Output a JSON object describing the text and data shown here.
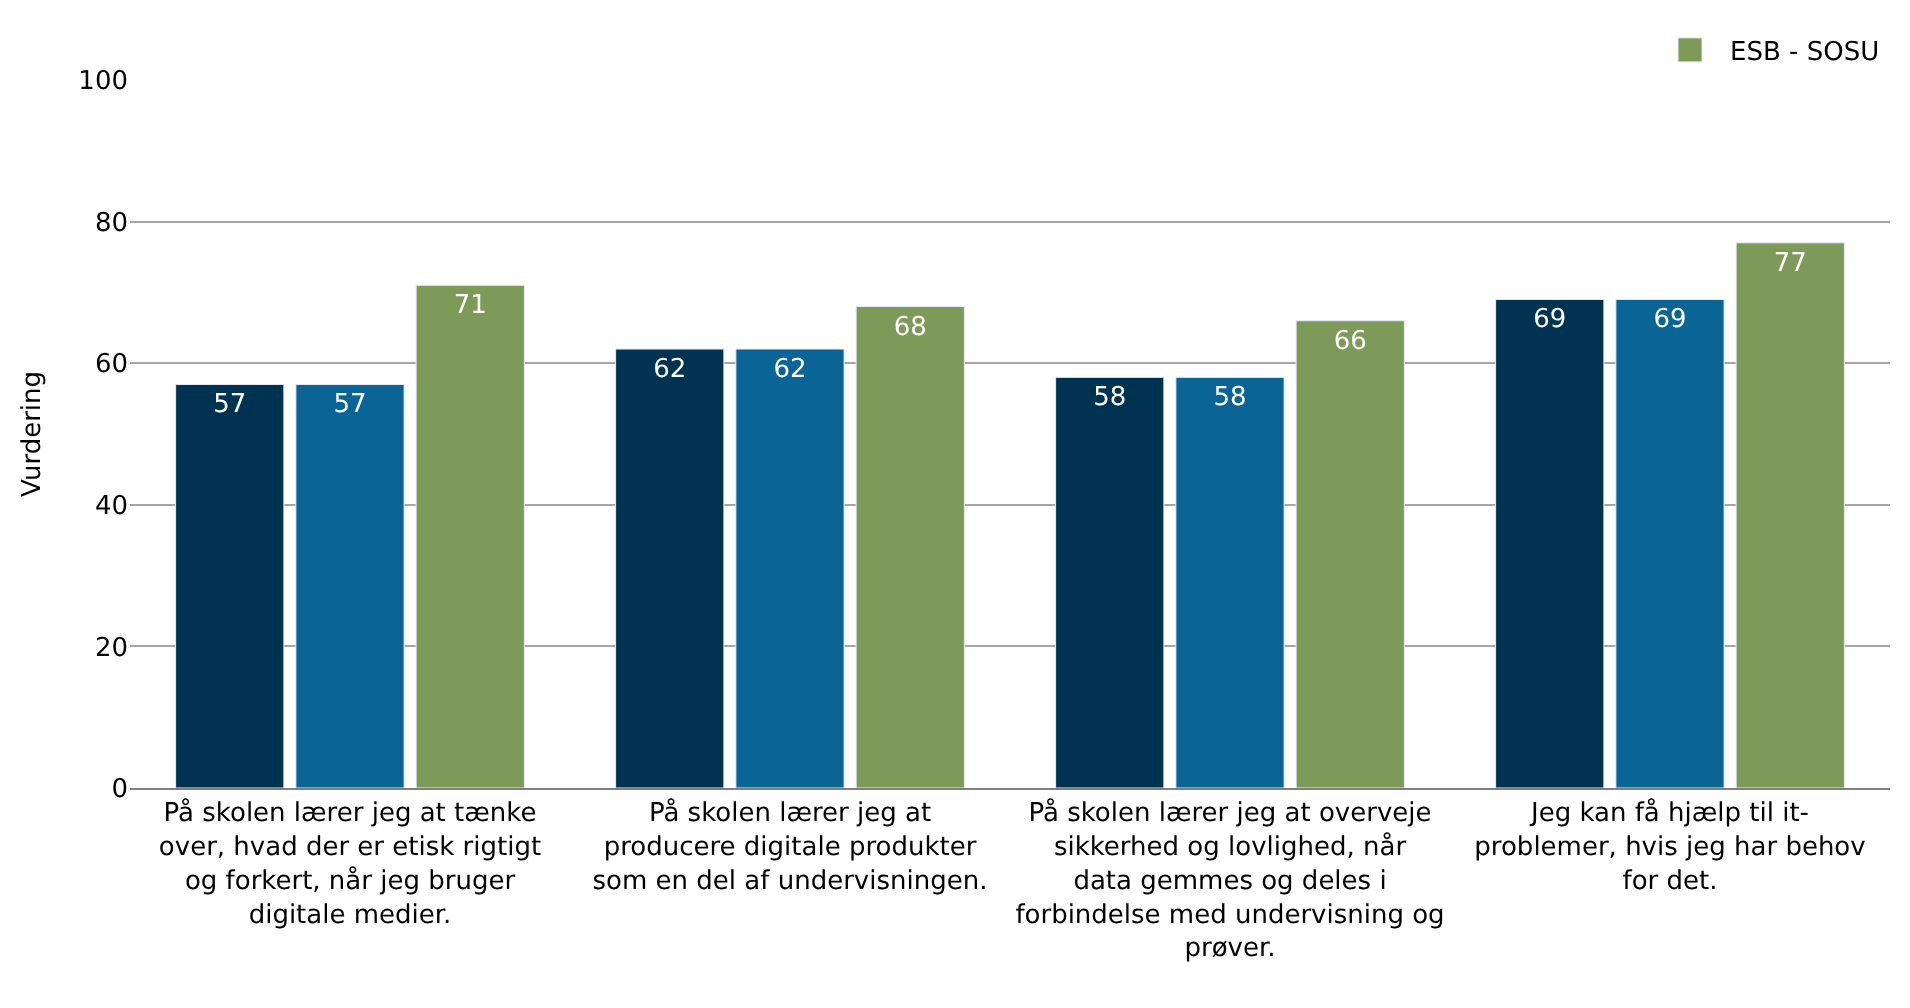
{
  "chart_data": {
    "type": "bar",
    "ylabel": "Vurdering",
    "categories": [
      "På skolen lærer jeg at tænke over, hvad der er etisk rigtigt og forkert, når jeg bruger digitale medier.",
      "På skolen lærer jeg at producere digitale produkter som en del af undervisningen.",
      "På skolen lærer jeg at overveje sikkerhed og lovlighed, når data gemmes og deles i forbindelse med undervisning og prøver.",
      "Jeg kan få hjælp til it-problemer, hvis jeg har behov for det."
    ],
    "series": [
      {
        "color": "#003352",
        "values": [
          57,
          62,
          58,
          69
        ]
      },
      {
        "color": "#0a6496",
        "values": [
          57,
          62,
          58,
          69
        ]
      },
      {
        "name": "ESB - SOSU",
        "color": "#7d9a58",
        "values": [
          71,
          68,
          66,
          77
        ]
      }
    ],
    "ylim": [
      0,
      100
    ],
    "yticks": [
      0,
      20,
      40,
      60,
      80,
      100
    ],
    "grid": "y",
    "legend": "top right",
    "data_labels": true
  }
}
